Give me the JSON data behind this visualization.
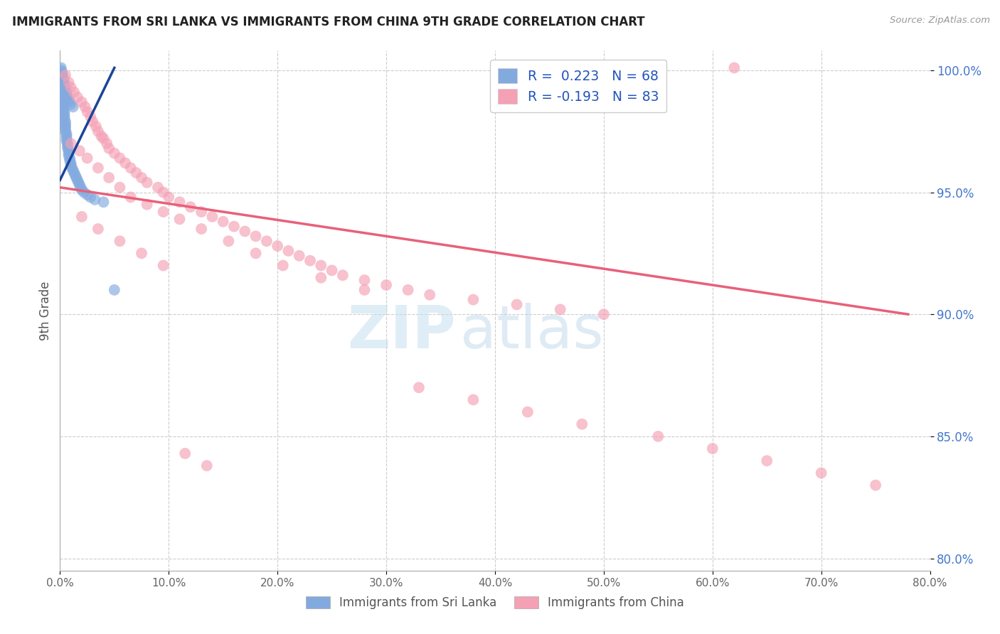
{
  "title": "IMMIGRANTS FROM SRI LANKA VS IMMIGRANTS FROM CHINA 9TH GRADE CORRELATION CHART",
  "source": "Source: ZipAtlas.com",
  "ylabel": "9th Grade",
  "legend_label1": "Immigrants from Sri Lanka",
  "legend_label2": "Immigrants from China",
  "R1": 0.223,
  "N1": 68,
  "R2": -0.193,
  "N2": 83,
  "xlim": [
    0.0,
    0.8
  ],
  "ylim": [
    0.795,
    1.008
  ],
  "xticks": [
    0.0,
    0.1,
    0.2,
    0.3,
    0.4,
    0.5,
    0.6,
    0.7,
    0.8
  ],
  "yticks": [
    0.8,
    0.85,
    0.9,
    0.95,
    1.0
  ],
  "color_sri_lanka": "#82aadf",
  "color_china": "#f4a0b5",
  "trendline_color_sri_lanka": "#1a4499",
  "trendline_color_china": "#e8607a",
  "watermark_zip": "ZIP",
  "watermark_atlas": "atlas",
  "sl_trendline": [
    [
      0.0,
      0.955
    ],
    [
      0.05,
      1.001
    ]
  ],
  "ch_trendline": [
    [
      0.0,
      0.952
    ],
    [
      0.78,
      0.9
    ]
  ],
  "sl_x": [
    0.001,
    0.001,
    0.001,
    0.002,
    0.002,
    0.002,
    0.002,
    0.003,
    0.003,
    0.003,
    0.003,
    0.003,
    0.004,
    0.004,
    0.004,
    0.004,
    0.005,
    0.005,
    0.005,
    0.005,
    0.005,
    0.006,
    0.006,
    0.006,
    0.006,
    0.007,
    0.007,
    0.007,
    0.008,
    0.008,
    0.008,
    0.009,
    0.009,
    0.01,
    0.01,
    0.011,
    0.012,
    0.013,
    0.014,
    0.015,
    0.016,
    0.017,
    0.018,
    0.019,
    0.02,
    0.022,
    0.025,
    0.028,
    0.032,
    0.04,
    0.001,
    0.001,
    0.002,
    0.002,
    0.003,
    0.003,
    0.004,
    0.004,
    0.005,
    0.005,
    0.006,
    0.006,
    0.007,
    0.008,
    0.009,
    0.01,
    0.012,
    0.05
  ],
  "sl_y": [
    0.998,
    0.996,
    0.994,
    0.993,
    0.992,
    0.99,
    0.989,
    0.988,
    0.987,
    0.986,
    0.985,
    0.984,
    0.983,
    0.982,
    0.981,
    0.98,
    0.979,
    0.978,
    0.977,
    0.976,
    0.975,
    0.974,
    0.973,
    0.972,
    0.971,
    0.97,
    0.969,
    0.968,
    0.967,
    0.966,
    0.965,
    0.964,
    0.963,
    0.962,
    0.961,
    0.96,
    0.959,
    0.958,
    0.957,
    0.956,
    0.955,
    0.954,
    0.953,
    0.952,
    0.951,
    0.95,
    0.949,
    0.948,
    0.947,
    0.946,
    1.001,
    1.0,
    0.999,
    0.998,
    0.997,
    0.996,
    0.995,
    0.994,
    0.993,
    0.992,
    0.991,
    0.99,
    0.989,
    0.988,
    0.987,
    0.986,
    0.985,
    0.91
  ],
  "ch_x": [
    0.005,
    0.008,
    0.01,
    0.013,
    0.016,
    0.02,
    0.023,
    0.025,
    0.028,
    0.03,
    0.033,
    0.035,
    0.038,
    0.04,
    0.043,
    0.045,
    0.05,
    0.055,
    0.06,
    0.065,
    0.07,
    0.075,
    0.08,
    0.09,
    0.095,
    0.1,
    0.11,
    0.12,
    0.13,
    0.14,
    0.15,
    0.16,
    0.17,
    0.18,
    0.19,
    0.2,
    0.21,
    0.22,
    0.23,
    0.24,
    0.25,
    0.26,
    0.28,
    0.3,
    0.32,
    0.34,
    0.38,
    0.42,
    0.46,
    0.5,
    0.01,
    0.018,
    0.025,
    0.035,
    0.045,
    0.055,
    0.065,
    0.08,
    0.095,
    0.11,
    0.13,
    0.155,
    0.18,
    0.205,
    0.24,
    0.28,
    0.33,
    0.38,
    0.43,
    0.48,
    0.55,
    0.6,
    0.65,
    0.7,
    0.75,
    0.02,
    0.035,
    0.055,
    0.075,
    0.095,
    0.115,
    0.135,
    0.62
  ],
  "ch_y": [
    0.998,
    0.995,
    0.993,
    0.991,
    0.989,
    0.987,
    0.985,
    0.983,
    0.981,
    0.979,
    0.977,
    0.975,
    0.973,
    0.972,
    0.97,
    0.968,
    0.966,
    0.964,
    0.962,
    0.96,
    0.958,
    0.956,
    0.954,
    0.952,
    0.95,
    0.948,
    0.946,
    0.944,
    0.942,
    0.94,
    0.938,
    0.936,
    0.934,
    0.932,
    0.93,
    0.928,
    0.926,
    0.924,
    0.922,
    0.92,
    0.918,
    0.916,
    0.914,
    0.912,
    0.91,
    0.908,
    0.906,
    0.904,
    0.902,
    0.9,
    0.97,
    0.967,
    0.964,
    0.96,
    0.956,
    0.952,
    0.948,
    0.945,
    0.942,
    0.939,
    0.935,
    0.93,
    0.925,
    0.92,
    0.915,
    0.91,
    0.87,
    0.865,
    0.86,
    0.855,
    0.85,
    0.845,
    0.84,
    0.835,
    0.83,
    0.94,
    0.935,
    0.93,
    0.925,
    0.92,
    0.843,
    0.838,
    1.001
  ]
}
